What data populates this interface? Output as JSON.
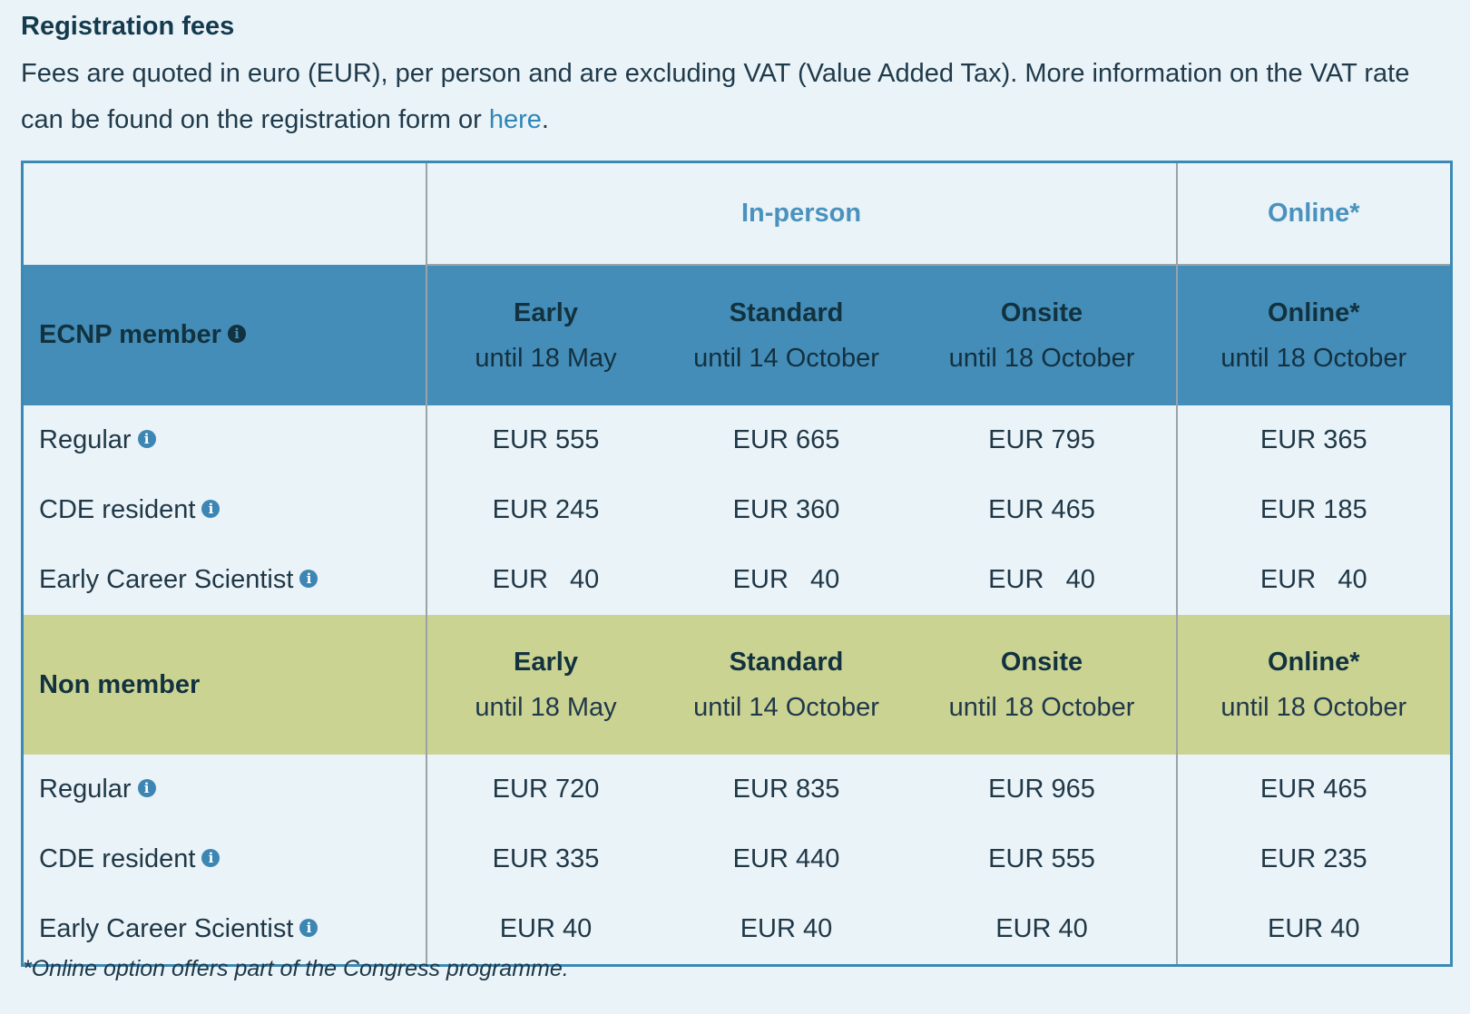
{
  "section": {
    "title": "Registration fees",
    "intro_text": "Fees are quoted in euro (EUR), per person and are excluding VAT (Value Added Tax). More information on the VAT rate can be found on the registration form or ",
    "intro_link": "here",
    "intro_end": "."
  },
  "table": {
    "group_headers": {
      "in_person": "In-person",
      "online": "Online*"
    },
    "ecnp": {
      "label": "ECNP member",
      "periods": [
        {
          "title": "Early",
          "date": "until 18 May"
        },
        {
          "title": "Standard",
          "date": "until 14 October"
        },
        {
          "title": "Onsite",
          "date": "until 18 October"
        },
        {
          "title": "Online*",
          "date": "until 18 October"
        }
      ],
      "rows": [
        {
          "label": "Regular",
          "values": [
            "EUR 555",
            "EUR 665",
            "EUR 795",
            "EUR 365"
          ]
        },
        {
          "label": "CDE resident",
          "values": [
            "EUR 245",
            "EUR 360",
            "EUR 465",
            "EUR 185"
          ]
        },
        {
          "label": "Early Career Scientist",
          "values": [
            "EUR   40",
            "EUR   40",
            "EUR   40",
            "EUR   40"
          ]
        }
      ]
    },
    "non": {
      "label": "Non member",
      "periods": [
        {
          "title": "Early",
          "date": "until 18 May"
        },
        {
          "title": "Standard",
          "date": "until 14 October"
        },
        {
          "title": "Onsite",
          "date": "until 18 October"
        },
        {
          "title": "Online*",
          "date": "until 18 October"
        }
      ],
      "rows": [
        {
          "label": "Regular",
          "values": [
            "EUR 720",
            "EUR 835",
            "EUR 965",
            "EUR 465"
          ]
        },
        {
          "label": "CDE resident",
          "values": [
            "EUR 335",
            "EUR 440",
            "EUR 555",
            "EUR 235"
          ]
        },
        {
          "label": "Early Career Scientist",
          "values": [
            "EUR 40",
            "EUR 40",
            "EUR 40",
            "EUR 40"
          ]
        }
      ]
    }
  },
  "footnote": "*Online option offers part of the Congress programme.",
  "icons": {
    "info": "info-icon",
    "info_glyph": "i"
  },
  "colors": {
    "ecnp_header": "#438db8",
    "non_header": "#cbd393",
    "accent": "#3b8ab5",
    "link": "#2f86b7"
  }
}
